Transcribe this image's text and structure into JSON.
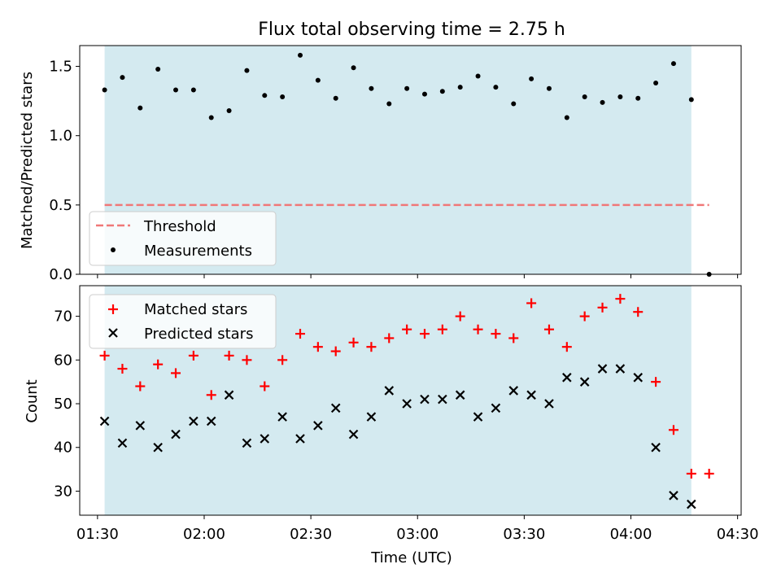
{
  "chart_data": [
    {
      "type": "scatter",
      "title": "Flux total observing time = 2.75 h",
      "xlabel": "",
      "ylabel": "Matched/Predicted stars",
      "xlim": [
        "01:25",
        "04:31"
      ],
      "ylim": [
        0,
        1.65
      ],
      "yticks": [
        "0.0",
        "0.5",
        "1.0",
        "1.5"
      ],
      "grid": false,
      "legend_position": "lower-left",
      "shaded_region": {
        "x_start": "01:32",
        "x_end": "04:17",
        "color": "#d4eaf0"
      },
      "threshold": {
        "name": "Threshold",
        "value": 0.5,
        "x_start": "01:32",
        "x_end": "04:22",
        "color": "#f07878"
      },
      "series": [
        {
          "name": "Measurements",
          "marker": "dot",
          "color": "#000000",
          "x": [
            "01:32",
            "01:37",
            "01:42",
            "01:47",
            "01:52",
            "01:57",
            "02:02",
            "02:07",
            "02:12",
            "02:17",
            "02:22",
            "02:27",
            "02:32",
            "02:37",
            "02:42",
            "02:47",
            "02:52",
            "02:57",
            "03:02",
            "03:07",
            "03:12",
            "03:17",
            "03:22",
            "03:27",
            "03:32",
            "03:37",
            "03:42",
            "03:47",
            "03:52",
            "03:57",
            "04:02",
            "04:07",
            "04:12",
            "04:17",
            "04:22"
          ],
          "y": [
            1.33,
            1.42,
            1.2,
            1.48,
            1.33,
            1.33,
            1.13,
            1.18,
            1.47,
            1.29,
            1.28,
            1.58,
            1.4,
            1.27,
            1.49,
            1.34,
            1.23,
            1.34,
            1.3,
            1.32,
            1.35,
            1.43,
            1.35,
            1.23,
            1.41,
            1.34,
            1.13,
            1.28,
            1.24,
            1.28,
            1.27,
            1.38,
            1.52,
            1.26,
            0.0
          ]
        }
      ]
    },
    {
      "type": "scatter",
      "title": "",
      "xlabel": "Time (UTC)",
      "ylabel": "Count",
      "xlim": [
        "01:25",
        "04:31"
      ],
      "ylim": [
        24.5,
        77
      ],
      "yticks": [
        "30",
        "40",
        "50",
        "60",
        "70"
      ],
      "xticks": [
        "01:30",
        "02:00",
        "02:30",
        "03:00",
        "03:30",
        "04:00",
        "04:30"
      ],
      "grid": false,
      "legend_position": "upper-left",
      "shaded_region": {
        "x_start": "01:32",
        "x_end": "04:17",
        "color": "#d4eaf0"
      },
      "series": [
        {
          "name": "Matched stars",
          "marker": "plus",
          "color": "#ff0000",
          "x": [
            "01:32",
            "01:37",
            "01:42",
            "01:47",
            "01:52",
            "01:57",
            "02:02",
            "02:07",
            "02:12",
            "02:17",
            "02:22",
            "02:27",
            "02:32",
            "02:37",
            "02:42",
            "02:47",
            "02:52",
            "02:57",
            "03:02",
            "03:07",
            "03:12",
            "03:17",
            "03:22",
            "03:27",
            "03:32",
            "03:37",
            "03:42",
            "03:47",
            "03:52",
            "03:57",
            "04:02",
            "04:07",
            "04:12",
            "04:17",
            "04:22"
          ],
          "y": [
            61,
            58,
            54,
            59,
            57,
            61,
            52,
            61,
            60,
            54,
            60,
            66,
            63,
            62,
            64,
            63,
            65,
            67,
            66,
            67,
            70,
            67,
            66,
            65,
            73,
            67,
            63,
            70,
            72,
            74,
            71,
            55,
            44,
            34,
            34
          ]
        },
        {
          "name": "Predicted stars",
          "marker": "x",
          "color": "#000000",
          "x": [
            "01:32",
            "01:37",
            "01:42",
            "01:47",
            "01:52",
            "01:57",
            "02:02",
            "02:07",
            "02:12",
            "02:17",
            "02:22",
            "02:27",
            "02:32",
            "02:37",
            "02:42",
            "02:47",
            "02:52",
            "02:57",
            "03:02",
            "03:07",
            "03:12",
            "03:17",
            "03:22",
            "03:27",
            "03:32",
            "03:37",
            "03:42",
            "03:47",
            "03:52",
            "03:57",
            "04:02",
            "04:07",
            "04:12",
            "04:17"
          ],
          "y": [
            46,
            41,
            45,
            40,
            43,
            46,
            46,
            52,
            41,
            42,
            47,
            42,
            45,
            49,
            43,
            47,
            53,
            50,
            51,
            51,
            52,
            47,
            49,
            53,
            52,
            50,
            56,
            55,
            58,
            58,
            56,
            40,
            29,
            27
          ]
        }
      ]
    }
  ]
}
